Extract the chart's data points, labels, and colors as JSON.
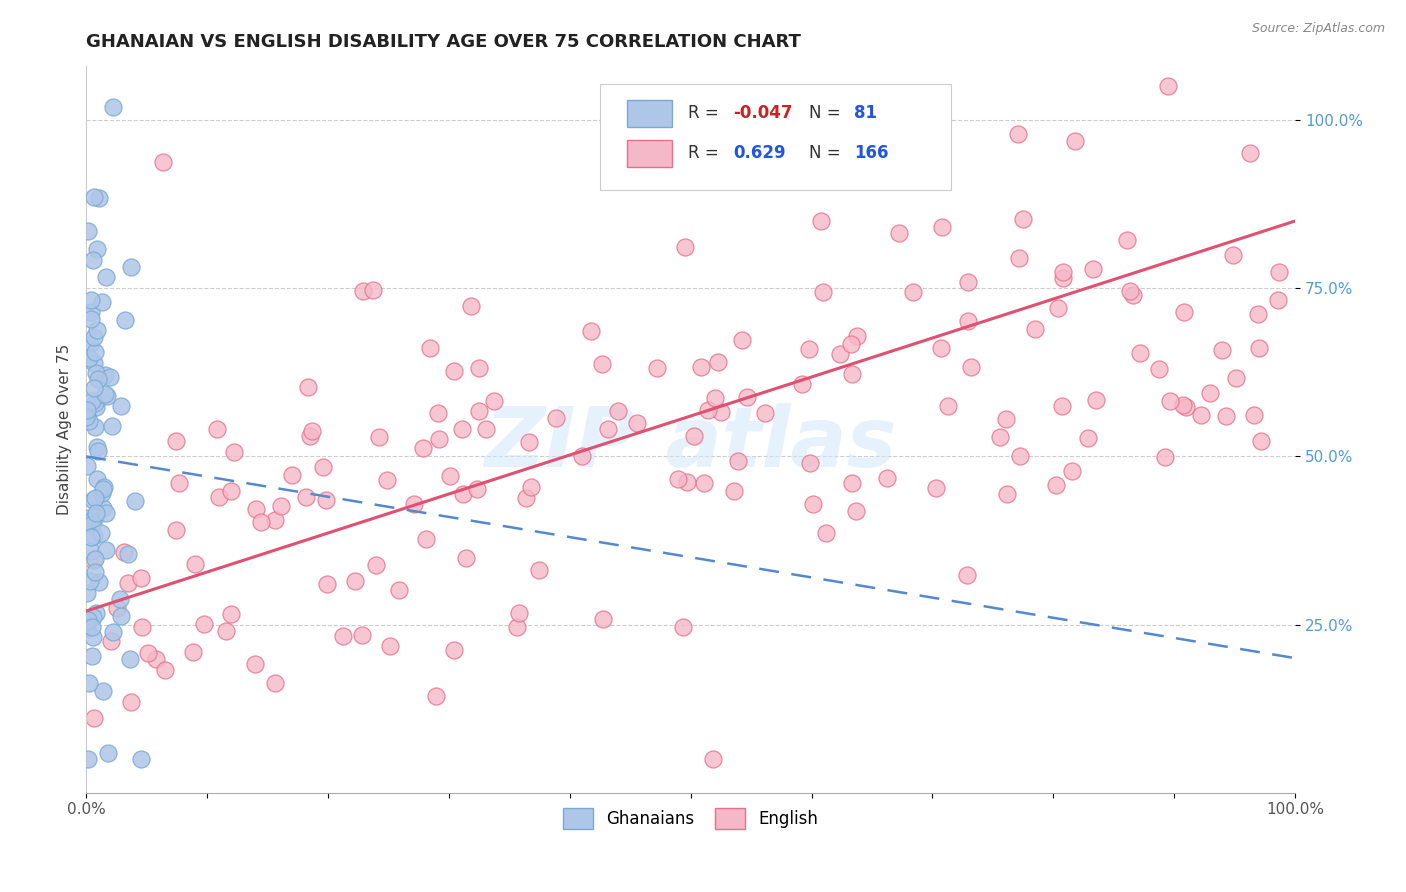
{
  "title": "GHANAIAN VS ENGLISH DISABILITY AGE OVER 75 CORRELATION CHART",
  "source_text": "Source: ZipAtlas.com",
  "ylabel": "Disability Age Over 75",
  "xlim": [
    0,
    1.0
  ],
  "ylim": [
    0,
    1.08
  ],
  "xtick_labels_outer": [
    "0.0%",
    "100.0%"
  ],
  "xtick_values_outer": [
    0.0,
    1.0
  ],
  "ytick_labels": [
    "25.0%",
    "50.0%",
    "75.0%",
    "100.0%"
  ],
  "ytick_values": [
    0.25,
    0.5,
    0.75,
    1.0
  ],
  "ghanaian_color": "#aec6e8",
  "english_color": "#f5b8c8",
  "ghanaian_edge_color": "#7aaad4",
  "english_edge_color": "#e8708a",
  "trend_ghanaian_color": "#5588cc",
  "trend_english_color": "#e05070",
  "R_ghanaian": -0.047,
  "N_ghanaian": 81,
  "R_english": 0.629,
  "N_english": 166,
  "title_fontsize": 13,
  "axis_label_fontsize": 11,
  "tick_fontsize": 11,
  "legend_fontsize": 12,
  "background_color": "#ffffff",
  "grid_color": "#c8c8c8",
  "watermark_color": "#d0e8f8",
  "source_color": "#888888",
  "ytick_color": "#5599dd",
  "xtick_color": "#555555"
}
